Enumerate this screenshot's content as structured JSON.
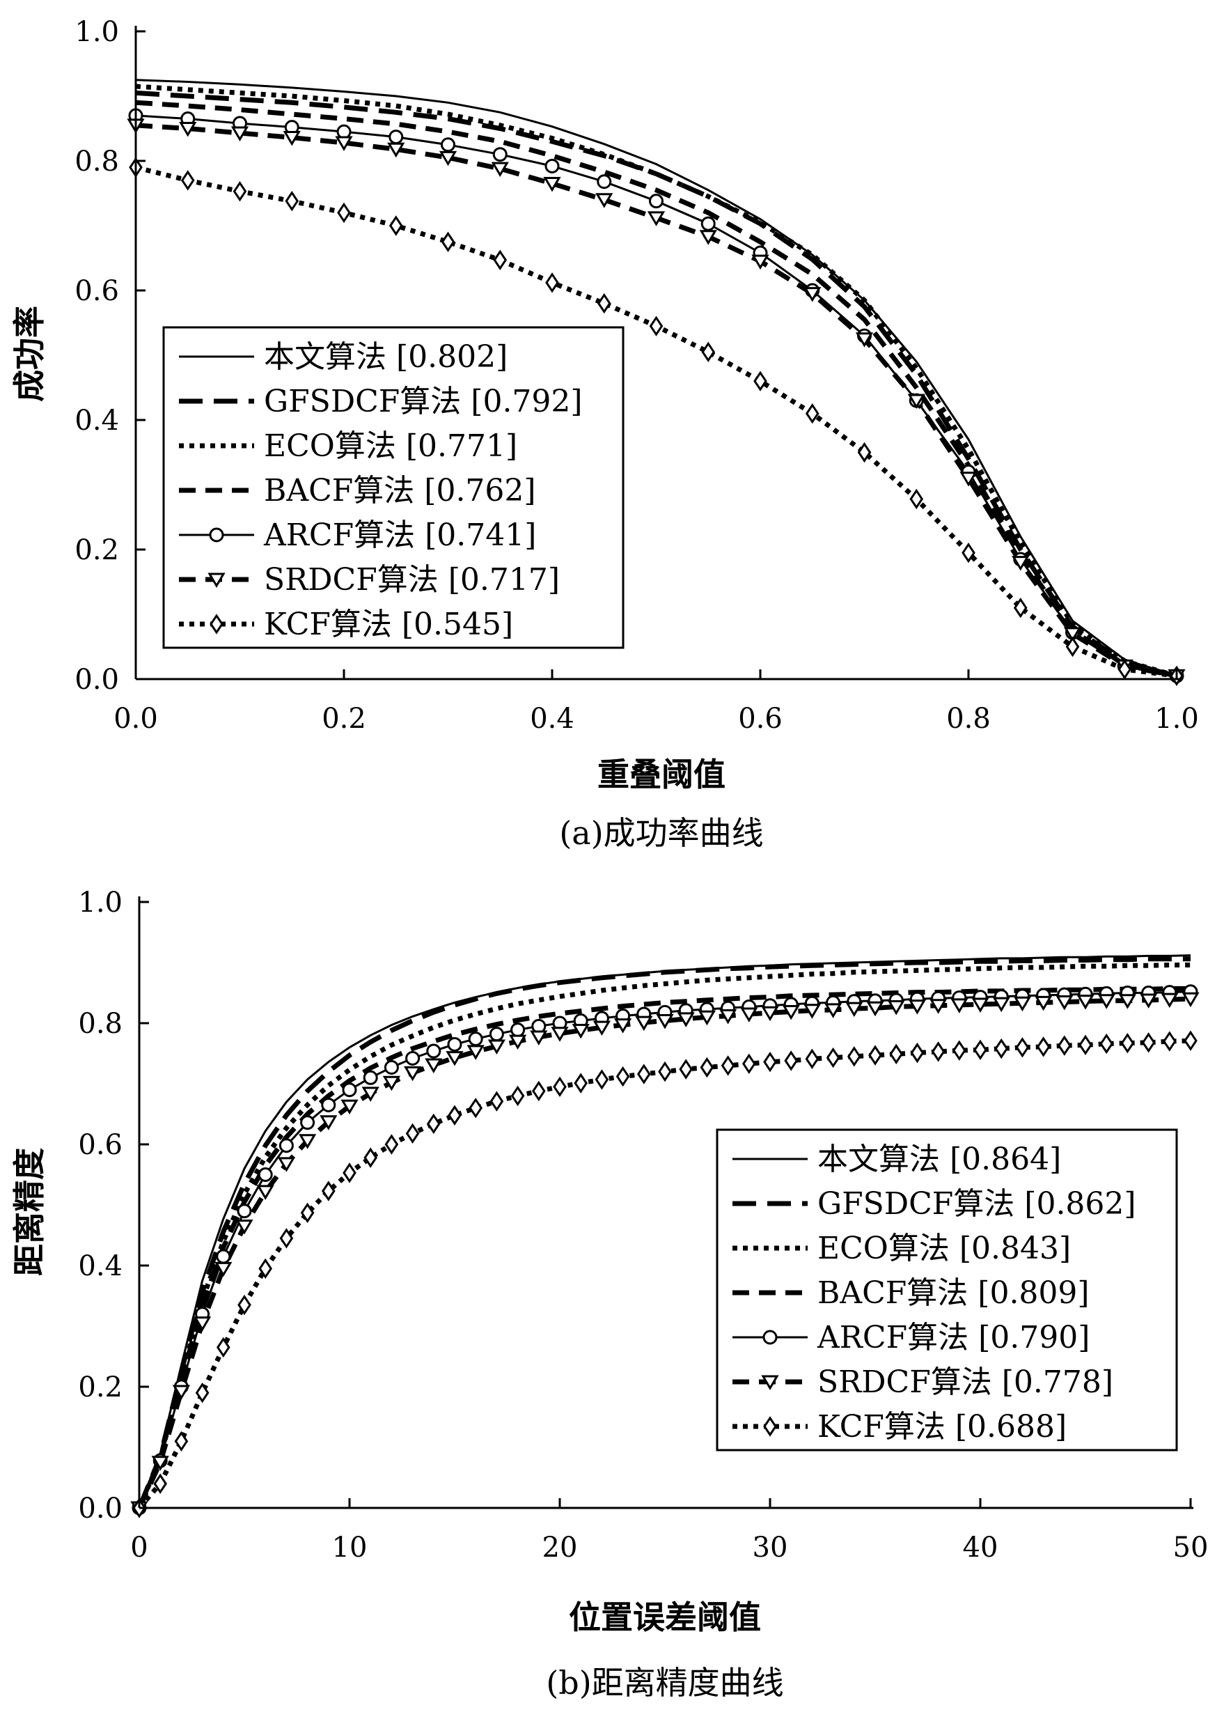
{
  "chart_data": [
    {
      "type": "line",
      "caption": "(a)成功率曲线",
      "xlabel": "重叠阈值",
      "ylabel": "成功率",
      "xlim": [
        0,
        1
      ],
      "ylim": [
        0,
        1
      ],
      "xticks": [
        "0.0",
        "0.2",
        "0.4",
        "0.6",
        "0.8",
        "1.0"
      ],
      "yticks": [
        "0.0",
        "0.2",
        "0.4",
        "0.6",
        "0.8",
        "1.0"
      ],
      "legend_position": "lower-left",
      "x": [
        0,
        0.05,
        0.1,
        0.15,
        0.2,
        0.25,
        0.3,
        0.35,
        0.4,
        0.45,
        0.5,
        0.55,
        0.6,
        0.65,
        0.7,
        0.75,
        0.8,
        0.85,
        0.9,
        0.95,
        1.0
      ],
      "series": [
        {
          "name": "本文算法 [0.802]",
          "style": "solid",
          "marker": "none",
          "values": [
            0.925,
            0.922,
            0.918,
            0.913,
            0.907,
            0.9,
            0.89,
            0.875,
            0.853,
            0.826,
            0.795,
            0.755,
            0.71,
            0.655,
            0.585,
            0.49,
            0.37,
            0.22,
            0.09,
            0.03,
            0.005
          ]
        },
        {
          "name": "GFSDCF算法 [0.792]",
          "style": "longdash",
          "marker": "none",
          "values": [
            0.905,
            0.9,
            0.895,
            0.89,
            0.883,
            0.875,
            0.865,
            0.85,
            0.83,
            0.808,
            0.78,
            0.745,
            0.703,
            0.648,
            0.575,
            0.47,
            0.34,
            0.2,
            0.08,
            0.025,
            0.005
          ]
        },
        {
          "name": "ECO算法 [0.771]",
          "style": "dot",
          "marker": "none",
          "values": [
            0.915,
            0.91,
            0.905,
            0.9,
            0.893,
            0.885,
            0.872,
            0.855,
            0.835,
            0.81,
            0.78,
            0.745,
            0.705,
            0.655,
            0.585,
            0.48,
            0.355,
            0.21,
            0.085,
            0.028,
            0.005
          ]
        },
        {
          "name": "BACF算法 [0.762]",
          "style": "dash",
          "marker": "none",
          "values": [
            0.89,
            0.885,
            0.879,
            0.872,
            0.865,
            0.857,
            0.845,
            0.83,
            0.808,
            0.783,
            0.755,
            0.72,
            0.675,
            0.625,
            0.555,
            0.45,
            0.33,
            0.19,
            0.075,
            0.022,
            0.005
          ]
        },
        {
          "name": "ARCF算法 [0.741]",
          "style": "solid",
          "marker": "circle",
          "values": [
            0.87,
            0.865,
            0.858,
            0.852,
            0.845,
            0.837,
            0.825,
            0.81,
            0.792,
            0.768,
            0.738,
            0.703,
            0.658,
            0.6,
            0.53,
            0.43,
            0.32,
            0.185,
            0.072,
            0.02,
            0.005
          ]
        },
        {
          "name": "SRDCF算法 [0.717]",
          "style": "dash",
          "marker": "triangle",
          "values": [
            0.855,
            0.85,
            0.843,
            0.836,
            0.828,
            0.818,
            0.805,
            0.788,
            0.765,
            0.74,
            0.712,
            0.683,
            0.645,
            0.595,
            0.525,
            0.43,
            0.31,
            0.18,
            0.07,
            0.02,
            0.005
          ]
        },
        {
          "name": "KCF算法 [0.545]",
          "style": "dot",
          "marker": "diamond",
          "values": [
            0.79,
            0.77,
            0.753,
            0.738,
            0.72,
            0.7,
            0.675,
            0.647,
            0.612,
            0.58,
            0.545,
            0.505,
            0.46,
            0.41,
            0.35,
            0.278,
            0.195,
            0.11,
            0.05,
            0.015,
            0.005
          ]
        }
      ]
    },
    {
      "type": "line",
      "caption": "(b)距离精度曲线",
      "xlabel": "位置误差阈值",
      "ylabel": "距离精度",
      "xlim": [
        0,
        50
      ],
      "ylim": [
        0,
        1
      ],
      "xticks": [
        "0",
        "10",
        "20",
        "30",
        "40",
        "50"
      ],
      "yticks": [
        "0.0",
        "0.2",
        "0.4",
        "0.6",
        "0.8",
        "1.0"
      ],
      "legend_position": "lower-right",
      "x": [
        0,
        1,
        2,
        3,
        4,
        5,
        6,
        7,
        8,
        9,
        10,
        11,
        12,
        13,
        14,
        15,
        16,
        17,
        18,
        19,
        20,
        21,
        22,
        23,
        24,
        25,
        26,
        27,
        28,
        29,
        30,
        31,
        32,
        33,
        34,
        35,
        36,
        37,
        38,
        39,
        40,
        41,
        42,
        43,
        44,
        45,
        46,
        47,
        48,
        49,
        50
      ],
      "series": [
        {
          "name": "本文算法 [0.864]",
          "style": "solid",
          "marker": "none",
          "values": [
            0,
            0.09,
            0.235,
            0.375,
            0.477,
            0.56,
            0.622,
            0.67,
            0.707,
            0.736,
            0.76,
            0.78,
            0.797,
            0.811,
            0.823,
            0.834,
            0.843,
            0.851,
            0.858,
            0.864,
            0.869,
            0.873,
            0.877,
            0.88,
            0.883,
            0.886,
            0.888,
            0.89,
            0.892,
            0.894,
            0.895,
            0.897,
            0.898,
            0.899,
            0.9,
            0.901,
            0.902,
            0.903,
            0.904,
            0.905,
            0.906,
            0.907,
            0.907,
            0.908,
            0.909,
            0.909,
            0.91,
            0.91,
            0.911,
            0.911,
            0.912
          ]
        },
        {
          "name": "GFSDCF算法 [0.862]",
          "style": "longdash",
          "marker": "none",
          "values": [
            0,
            0.085,
            0.225,
            0.357,
            0.456,
            0.535,
            0.598,
            0.648,
            0.688,
            0.72,
            0.747,
            0.769,
            0.788,
            0.804,
            0.818,
            0.83,
            0.84,
            0.849,
            0.856,
            0.862,
            0.867,
            0.871,
            0.875,
            0.878,
            0.881,
            0.884,
            0.886,
            0.888,
            0.89,
            0.891,
            0.893,
            0.894,
            0.895,
            0.896,
            0.897,
            0.898,
            0.899,
            0.9,
            0.9,
            0.901,
            0.902,
            0.902,
            0.903,
            0.903,
            0.904,
            0.904,
            0.905,
            0.905,
            0.906,
            0.906,
            0.906
          ]
        },
        {
          "name": "ECO算法 [0.843]",
          "style": "dot",
          "marker": "none",
          "values": [
            0,
            0.082,
            0.215,
            0.343,
            0.44,
            0.518,
            0.579,
            0.627,
            0.665,
            0.697,
            0.723,
            0.745,
            0.764,
            0.779,
            0.793,
            0.805,
            0.815,
            0.824,
            0.832,
            0.838,
            0.844,
            0.849,
            0.854,
            0.858,
            0.862,
            0.865,
            0.868,
            0.871,
            0.873,
            0.875,
            0.877,
            0.879,
            0.881,
            0.882,
            0.884,
            0.885,
            0.886,
            0.887,
            0.888,
            0.889,
            0.89,
            0.891,
            0.892,
            0.892,
            0.893,
            0.894,
            0.894,
            0.895,
            0.895,
            0.896,
            0.896
          ]
        },
        {
          "name": "BACF算法 [0.809]",
          "style": "dash",
          "marker": "none",
          "values": [
            0,
            0.08,
            0.21,
            0.335,
            0.43,
            0.505,
            0.565,
            0.612,
            0.65,
            0.68,
            0.705,
            0.726,
            0.743,
            0.758,
            0.77,
            0.781,
            0.79,
            0.798,
            0.805,
            0.811,
            0.816,
            0.82,
            0.824,
            0.828,
            0.831,
            0.834,
            0.836,
            0.838,
            0.84,
            0.842,
            0.843,
            0.845,
            0.846,
            0.847,
            0.848,
            0.849,
            0.85,
            0.851,
            0.851,
            0.852,
            0.853,
            0.853,
            0.854,
            0.854,
            0.855,
            0.855,
            0.856,
            0.856,
            0.856,
            0.857,
            0.857
          ]
        },
        {
          "name": "ARCF算法 [0.790]",
          "style": "solid",
          "marker": "circle",
          "values": [
            0,
            0.078,
            0.2,
            0.32,
            0.415,
            0.49,
            0.55,
            0.598,
            0.636,
            0.665,
            0.69,
            0.71,
            0.727,
            0.742,
            0.754,
            0.765,
            0.774,
            0.782,
            0.789,
            0.795,
            0.8,
            0.804,
            0.808,
            0.812,
            0.815,
            0.818,
            0.821,
            0.823,
            0.825,
            0.827,
            0.829,
            0.831,
            0.833,
            0.834,
            0.836,
            0.837,
            0.838,
            0.84,
            0.841,
            0.842,
            0.843,
            0.844,
            0.845,
            0.846,
            0.847,
            0.848,
            0.849,
            0.85,
            0.85,
            0.851,
            0.852
          ]
        },
        {
          "name": "SRDCF算法 [0.778]",
          "style": "dash",
          "marker": "triangle",
          "values": [
            0,
            0.075,
            0.192,
            0.305,
            0.395,
            0.465,
            0.522,
            0.568,
            0.606,
            0.637,
            0.663,
            0.684,
            0.702,
            0.718,
            0.731,
            0.743,
            0.753,
            0.762,
            0.77,
            0.777,
            0.783,
            0.788,
            0.793,
            0.797,
            0.801,
            0.804,
            0.807,
            0.81,
            0.812,
            0.815,
            0.817,
            0.819,
            0.821,
            0.822,
            0.824,
            0.825,
            0.827,
            0.828,
            0.829,
            0.83,
            0.831,
            0.832,
            0.833,
            0.834,
            0.835,
            0.836,
            0.837,
            0.837,
            0.838,
            0.839,
            0.84
          ]
        },
        {
          "name": "KCF算法 [0.688]",
          "style": "dot",
          "marker": "diamond",
          "values": [
            0,
            0.04,
            0.11,
            0.19,
            0.265,
            0.335,
            0.395,
            0.445,
            0.487,
            0.523,
            0.553,
            0.578,
            0.6,
            0.618,
            0.634,
            0.648,
            0.66,
            0.671,
            0.68,
            0.688,
            0.695,
            0.701,
            0.707,
            0.712,
            0.716,
            0.72,
            0.724,
            0.727,
            0.73,
            0.733,
            0.736,
            0.738,
            0.741,
            0.743,
            0.745,
            0.747,
            0.749,
            0.751,
            0.753,
            0.755,
            0.756,
            0.758,
            0.76,
            0.761,
            0.763,
            0.764,
            0.766,
            0.767,
            0.768,
            0.77,
            0.771
          ]
        }
      ]
    }
  ]
}
